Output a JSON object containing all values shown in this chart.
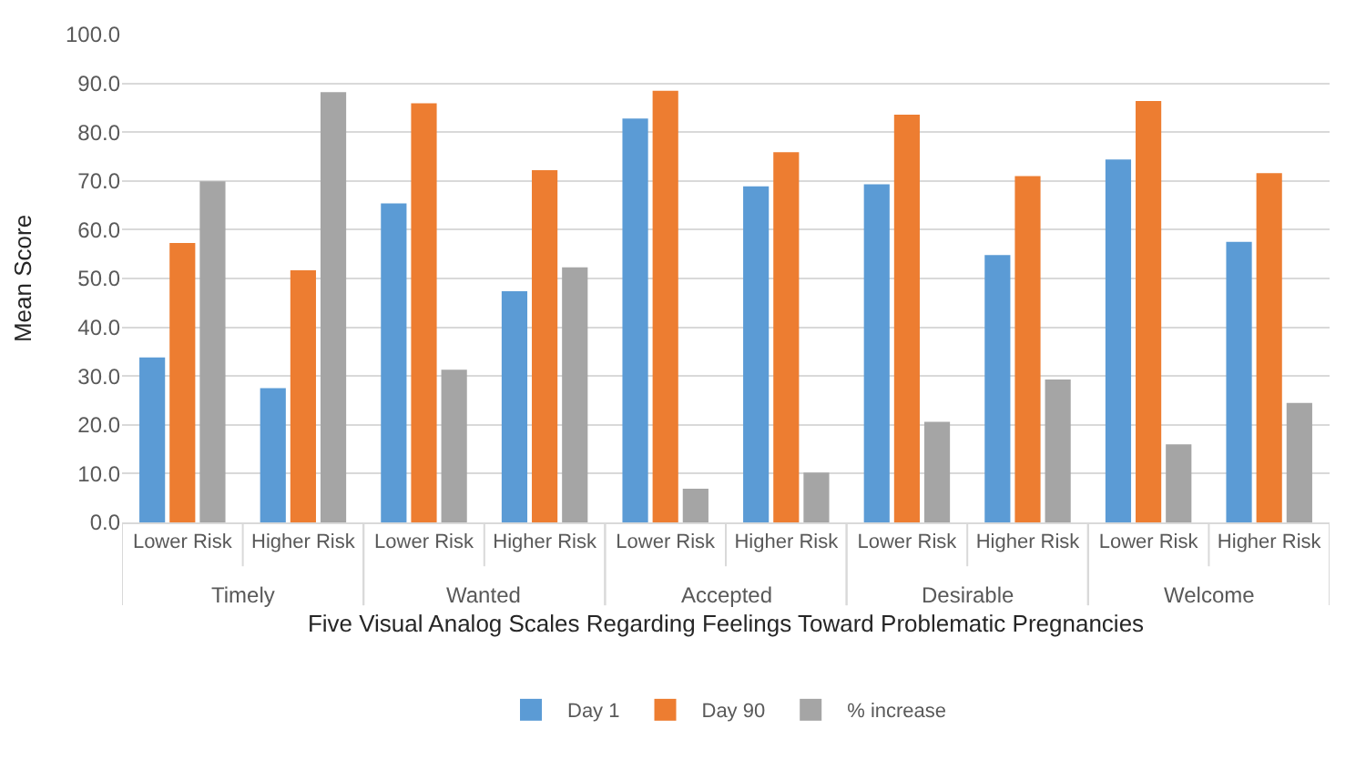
{
  "chart_data": {
    "type": "bar",
    "xlabel": "Five Visual Analog Scales Regarding Feelings Toward Problematic Pregnancies",
    "ylabel": "Mean Score",
    "categories": [
      "Lower Risk",
      "Higher Risk",
      "Lower Risk",
      "Higher Risk",
      "Lower Risk",
      "Higher Risk",
      "Lower Risk",
      "Higher Risk",
      "Lower Risk",
      "Higher Risk"
    ],
    "annotations": [
      "Timely",
      "Wanted",
      "Accepted",
      "Desirable",
      "Welcome"
    ],
    "series": [
      {
        "name": "Day 1",
        "color": "#5b9bd5",
        "values": [
          33.8,
          27.5,
          65.4,
          47.4,
          82.8,
          68.9,
          69.3,
          54.8,
          74.4,
          57.5
        ]
      },
      {
        "name": "Day 90",
        "color": "#ed7d31",
        "values": [
          57.3,
          51.7,
          85.9,
          72.2,
          88.5,
          75.9,
          83.6,
          71.0,
          86.4,
          71.6
        ]
      },
      {
        "name": "% increase",
        "color": "#a5a5a5",
        "values": [
          69.9,
          88.2,
          31.3,
          52.3,
          6.9,
          10.2,
          20.6,
          29.3,
          16.0,
          24.5
        ]
      }
    ],
    "ylim": [
      0,
      100
    ],
    "yticks": [
      {
        "value": 0,
        "label": "0.0"
      },
      {
        "value": 10,
        "label": "10.0"
      },
      {
        "value": 20,
        "label": "20.0"
      },
      {
        "value": 30,
        "label": "30.0"
      },
      {
        "value": 40,
        "label": "40.0"
      },
      {
        "value": 50,
        "label": "50.0"
      },
      {
        "value": 60,
        "label": "60.0"
      },
      {
        "value": 70,
        "label": "70.0"
      },
      {
        "value": 80,
        "label": "80.0"
      },
      {
        "value": 90,
        "label": "90.0"
      },
      {
        "value": 100,
        "label": "100.0"
      }
    ],
    "grid": "y",
    "legend": "bottom"
  }
}
